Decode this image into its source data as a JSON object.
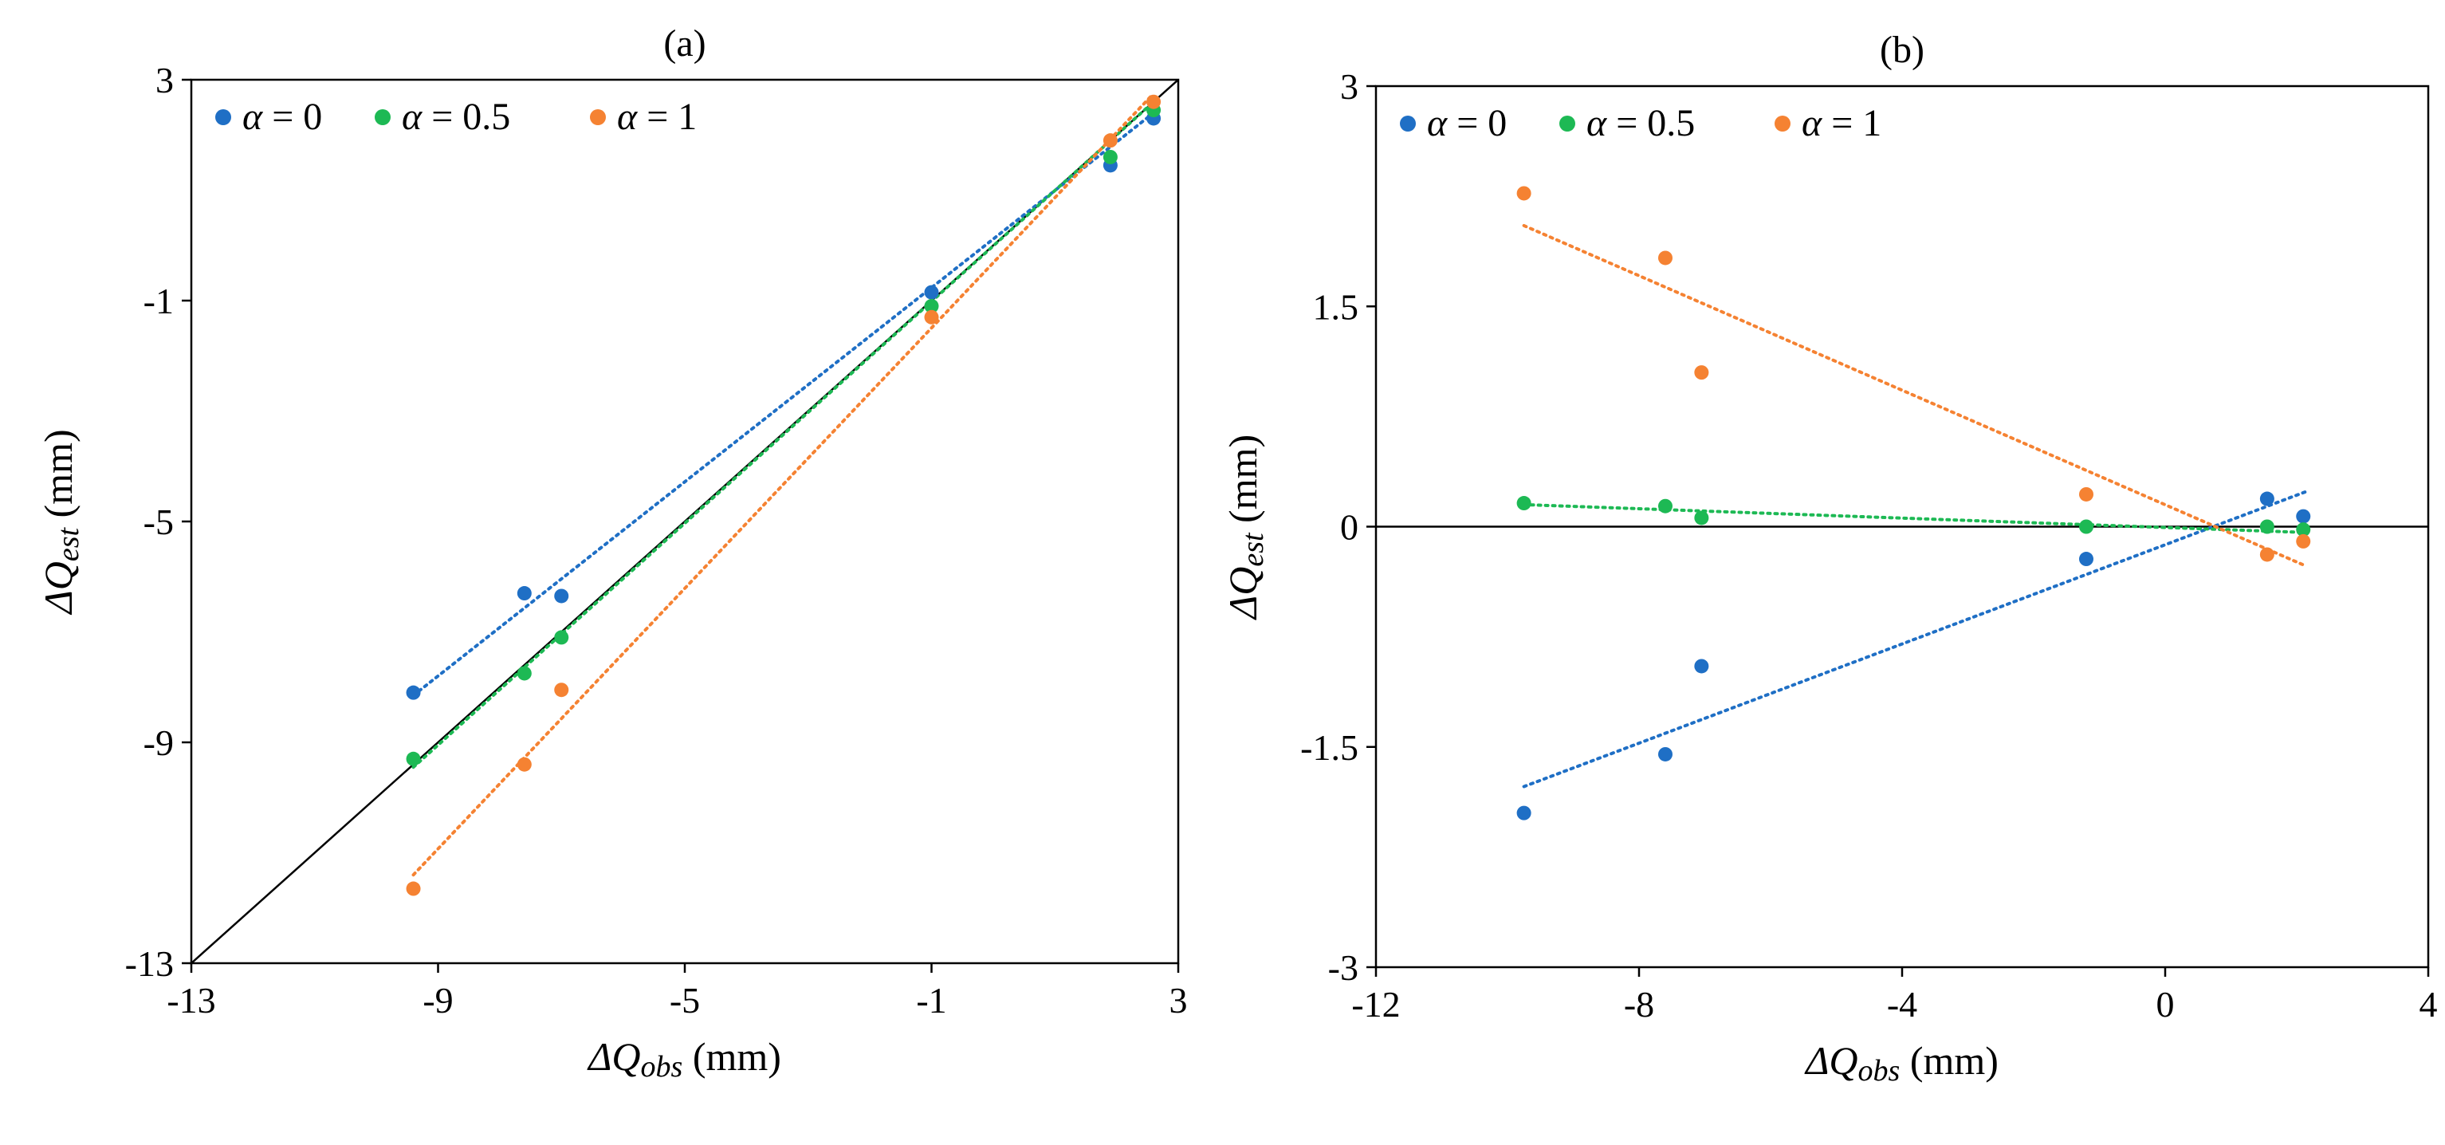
{
  "chart_data": [
    {
      "type": "scatter",
      "title": "(a)",
      "xlabel": {
        "symbol": "ΔQ",
        "sub": "obs",
        "unit": " (mm)"
      },
      "ylabel": {
        "symbol": "ΔQ",
        "sub": "est",
        "unit": " (mm)"
      },
      "xlim": [
        -13,
        3
      ],
      "ylim": [
        -13,
        3
      ],
      "xticks": [
        "-13",
        "-9",
        "-5",
        "-1",
        "3"
      ],
      "xtick_values": [
        -13,
        -9,
        -5,
        -1,
        3
      ],
      "yticks": [
        "3",
        "-1",
        "-5",
        "-9",
        "-13"
      ],
      "ytick_values": [
        3,
        -1,
        -5,
        -9,
        -13
      ],
      "grid": false,
      "legend_position": "top-left",
      "reference_line": {
        "type": "1:1",
        "color": "#000000"
      },
      "series": [
        {
          "name_prefix": "α",
          "name_value": " = 0",
          "color": "#1f6fc5",
          "points": [
            [
              -9.4,
              -8.1
            ],
            [
              -7.6,
              -6.3
            ],
            [
              -7.0,
              -6.35
            ],
            [
              -1.0,
              -0.85
            ],
            [
              1.9,
              1.45
            ],
            [
              2.6,
              2.3
            ]
          ],
          "trend": [
            [
              -9.4,
              -8.15
            ],
            [
              2.6,
              2.4
            ]
          ]
        },
        {
          "name_prefix": "α",
          "name_value": " = 0.5",
          "color": "#1db954",
          "points": [
            [
              -9.4,
              -9.3
            ],
            [
              -7.6,
              -7.75
            ],
            [
              -7.0,
              -7.1
            ],
            [
              -1.0,
              -1.1
            ],
            [
              1.9,
              1.6
            ],
            [
              2.6,
              2.45
            ]
          ],
          "trend": [
            [
              -9.4,
              -9.45
            ],
            [
              2.6,
              2.6
            ]
          ]
        },
        {
          "name_prefix": "α",
          "name_value": " = 1",
          "color": "#f58232",
          "points": [
            [
              -9.4,
              -11.65
            ],
            [
              -7.6,
              -9.4
            ],
            [
              -7.0,
              -8.05
            ],
            [
              -1.0,
              -1.3
            ],
            [
              1.9,
              1.9
            ],
            [
              2.6,
              2.6
            ]
          ],
          "trend": [
            [
              -9.4,
              -11.4
            ],
            [
              2.6,
              2.75
            ]
          ]
        }
      ]
    },
    {
      "type": "scatter",
      "title": "(b)",
      "xlabel": {
        "symbol": "ΔQ",
        "sub": "obs",
        "unit": " (mm)"
      },
      "ylabel": {
        "symbol": "ΔQ",
        "sub": "est",
        "unit": " (mm)"
      },
      "xlim": [
        -12,
        4
      ],
      "ylim": [
        -3,
        3
      ],
      "xticks": [
        "-12",
        "-8",
        "-4",
        "0",
        "4"
      ],
      "xtick_values": [
        -12,
        -8,
        -4,
        0,
        4
      ],
      "yticks": [
        "3",
        "1.5",
        "0",
        "-1.5",
        "-3"
      ],
      "ytick_values": [
        3,
        1.5,
        0,
        -1.5,
        -3
      ],
      "grid": false,
      "legend_position": "top-left",
      "reference_line": {
        "type": "y=0",
        "color": "#000000"
      },
      "series": [
        {
          "name_prefix": "α",
          "name_value": " = 0",
          "color": "#1f6fc5",
          "points": [
            [
              -9.75,
              -1.95
            ],
            [
              -7.6,
              -1.55
            ],
            [
              -7.05,
              -0.95
            ],
            [
              -1.2,
              -0.22
            ],
            [
              1.55,
              0.19
            ],
            [
              2.1,
              0.07
            ]
          ],
          "trend": [
            [
              -9.75,
              -1.77
            ],
            [
              2.15,
              0.24
            ]
          ]
        },
        {
          "name_prefix": "α",
          "name_value": " = 0.5",
          "color": "#1db954",
          "points": [
            [
              -9.75,
              0.16
            ],
            [
              -7.6,
              0.14
            ],
            [
              -7.05,
              0.06
            ],
            [
              -1.2,
              0.0
            ],
            [
              1.55,
              0.0
            ],
            [
              2.1,
              -0.02
            ]
          ],
          "trend": [
            [
              -9.75,
              0.15
            ],
            [
              2.15,
              -0.04
            ]
          ]
        },
        {
          "name_prefix": "α",
          "name_value": " = 1",
          "color": "#f58232",
          "points": [
            [
              -9.75,
              2.27
            ],
            [
              -7.6,
              1.83
            ],
            [
              -7.05,
              1.05
            ],
            [
              -1.2,
              0.22
            ],
            [
              1.55,
              -0.19
            ],
            [
              2.1,
              -0.1
            ]
          ],
          "trend": [
            [
              -9.75,
              2.05
            ],
            [
              2.15,
              -0.27
            ]
          ]
        }
      ]
    }
  ]
}
